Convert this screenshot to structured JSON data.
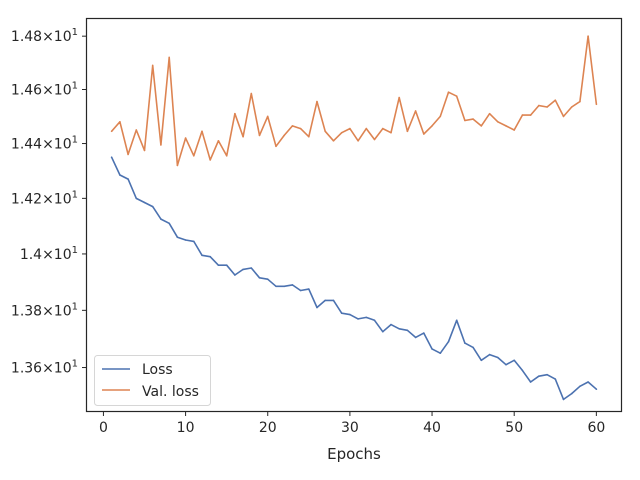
{
  "chart_data": {
    "type": "line",
    "title": "",
    "xlabel": "Epochs",
    "ylabel": "",
    "y_scale": "log",
    "grid": false,
    "legend_position": "lower-left",
    "xlim": [
      -2,
      63
    ],
    "ylim": [
      13.45,
      14.865
    ],
    "x_ticks": [
      0,
      10,
      20,
      30,
      40,
      50,
      60
    ],
    "x_tick_labels": [
      "0",
      "10",
      "20",
      "30",
      "40",
      "50",
      "60"
    ],
    "y_ticks": [
      13.6,
      13.8,
      14.0,
      14.2,
      14.4,
      14.6,
      14.8
    ],
    "y_tick_labels": [
      {
        "base": "1.36",
        "exp": "1"
      },
      {
        "base": "1.38",
        "exp": "1"
      },
      {
        "base": "1.4",
        "exp": "1"
      },
      {
        "base": "1.42",
        "exp": "1"
      },
      {
        "base": "1.44",
        "exp": "1"
      },
      {
        "base": "1.46",
        "exp": "1"
      },
      {
        "base": "1.48",
        "exp": "1"
      }
    ],
    "x": [
      1,
      2,
      3,
      4,
      5,
      6,
      7,
      8,
      9,
      10,
      11,
      12,
      13,
      14,
      15,
      16,
      17,
      18,
      19,
      20,
      21,
      22,
      23,
      24,
      25,
      26,
      27,
      28,
      29,
      30,
      31,
      32,
      33,
      34,
      35,
      36,
      37,
      38,
      39,
      40,
      41,
      42,
      43,
      44,
      45,
      46,
      47,
      48,
      49,
      50,
      51,
      52,
      53,
      54,
      55,
      56,
      57,
      58,
      59,
      60
    ],
    "series": [
      {
        "name": "Loss",
        "color": "#4c72b0",
        "values": [
          14.35,
          14.285,
          14.27,
          14.2,
          14.185,
          14.17,
          14.125,
          14.11,
          14.06,
          14.05,
          14.045,
          13.995,
          13.99,
          13.96,
          13.96,
          13.925,
          13.945,
          13.95,
          13.915,
          13.91,
          13.885,
          13.885,
          13.89,
          13.87,
          13.875,
          13.81,
          13.835,
          13.835,
          13.79,
          13.785,
          13.77,
          13.775,
          13.765,
          13.725,
          13.75,
          13.735,
          13.73,
          13.705,
          13.72,
          13.665,
          13.65,
          13.69,
          13.765,
          13.685,
          13.67,
          13.625,
          13.645,
          13.635,
          13.61,
          13.625,
          13.59,
          13.55,
          13.57,
          13.575,
          13.56,
          13.49,
          13.51,
          13.535,
          13.55,
          13.525
        ]
      },
      {
        "name": "Val. loss",
        "color": "#dd8452",
        "values": [
          14.445,
          14.48,
          14.36,
          14.45,
          14.375,
          14.69,
          14.395,
          14.72,
          14.32,
          14.42,
          14.355,
          14.445,
          14.34,
          14.41,
          14.355,
          14.51,
          14.425,
          14.585,
          14.43,
          14.5,
          14.39,
          14.43,
          14.465,
          14.455,
          14.425,
          14.555,
          14.445,
          14.41,
          14.44,
          14.455,
          14.41,
          14.455,
          14.415,
          14.455,
          14.44,
          14.57,
          14.445,
          14.52,
          14.435,
          14.465,
          14.5,
          14.59,
          14.575,
          14.485,
          14.49,
          14.465,
          14.51,
          14.48,
          14.465,
          14.45,
          14.505,
          14.505,
          14.54,
          14.535,
          14.56,
          14.5,
          14.535,
          14.555,
          14.8,
          14.545
        ]
      }
    ]
  }
}
